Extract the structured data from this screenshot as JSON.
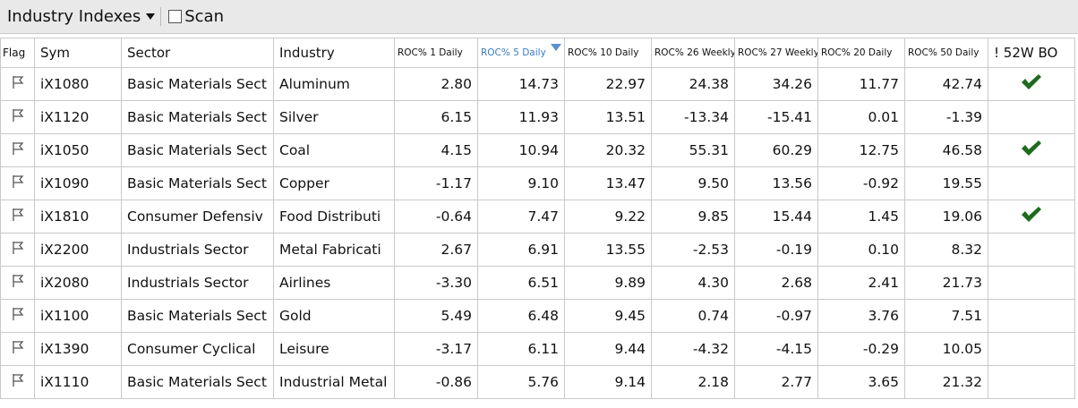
{
  "toolbar": {
    "dropdown": "Industry Indexes",
    "checkbox": "Scan"
  },
  "table": {
    "columns": [
      "Flag",
      "Sym",
      "Sector",
      "Industry",
      "ROC% 1 Daily",
      "ROC% 5 Daily",
      "ROC% 10 Daily",
      "ROC% 26 Weekly",
      "ROC% 27 Weekly",
      "ROC% 20 Daily",
      "ROC% 50 Daily",
      "! 52W BO"
    ],
    "rows": [
      {
        "sym": "iX1080",
        "sector": "Basic Materials Sect",
        "industry": "Aluminum",
        "values": [
          "2.80",
          "14.73",
          "22.97",
          "24.38",
          "34.26",
          "11.77",
          "42.74"
        ],
        "breakout": true
      },
      {
        "sym": "iX1120",
        "sector": "Basic Materials Sect",
        "industry": "Silver",
        "values": [
          "6.15",
          "11.93",
          "13.51",
          "-13.34",
          "-15.41",
          "0.01",
          "-1.39"
        ],
        "breakout": false
      },
      {
        "sym": "iX1050",
        "sector": "Basic Materials Sect",
        "industry": "Coal",
        "values": [
          "4.15",
          "10.94",
          "20.32",
          "55.31",
          "60.29",
          "12.75",
          "46.58"
        ],
        "breakout": true
      },
      {
        "sym": "iX1090",
        "sector": "Basic Materials Sect",
        "industry": "Copper",
        "values": [
          "-1.17",
          "9.10",
          "13.47",
          "9.50",
          "13.56",
          "-0.92",
          "19.55"
        ],
        "breakout": false
      },
      {
        "sym": "iX1810",
        "sector": "Consumer Defensiv",
        "industry": "Food Distributi",
        "values": [
          "-0.64",
          "7.47",
          "9.22",
          "9.85",
          "15.44",
          "1.45",
          "19.06"
        ],
        "breakout": true
      },
      {
        "sym": "iX2200",
        "sector": "Industrials Sector",
        "industry": "Metal Fabricati",
        "values": [
          "2.67",
          "6.91",
          "13.55",
          "-2.53",
          "-0.19",
          "0.10",
          "8.32"
        ],
        "breakout": false
      },
      {
        "sym": "iX2080",
        "sector": "Industrials Sector",
        "industry": "Airlines",
        "values": [
          "-3.30",
          "6.51",
          "9.89",
          "4.30",
          "2.68",
          "2.41",
          "21.73"
        ],
        "breakout": false
      },
      {
        "sym": "iX1100",
        "sector": "Basic Materials Sect",
        "industry": "Gold",
        "values": [
          "5.49",
          "6.48",
          "9.45",
          "0.74",
          "-0.97",
          "3.76",
          "7.51"
        ],
        "breakout": false
      },
      {
        "sym": "iX1390",
        "sector": "Consumer Cyclical",
        "industry": "Leisure",
        "values": [
          "-3.17",
          "6.11",
          "9.44",
          "-4.32",
          "-4.15",
          "-0.29",
          "10.05"
        ],
        "breakout": false
      },
      {
        "sym": "iX1110",
        "sector": "Basic Materials Sect",
        "industry": "Industrial Metal",
        "values": [
          "-0.86",
          "5.76",
          "9.14",
          "2.18",
          "2.77",
          "3.65",
          "21.32"
        ],
        "breakout": false
      }
    ]
  }
}
